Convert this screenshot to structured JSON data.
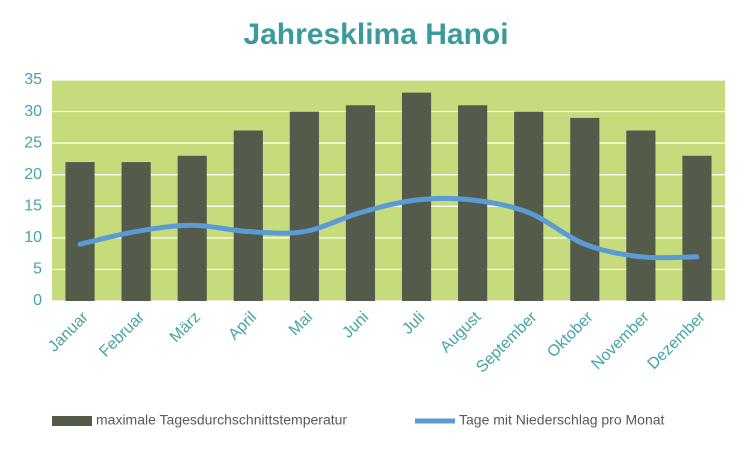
{
  "chart_data": {
    "type": "combo",
    "title": "Jahresklima Hanoi",
    "categories": [
      "Januar",
      "Februar",
      "März",
      "April",
      "Mai",
      "Juni",
      "Juli",
      "August",
      "September",
      "Oktober",
      "November",
      "Dezember"
    ],
    "series": [
      {
        "name": "maximale Tagesdurchschnittstemperatur",
        "type": "bar",
        "color": "#545b4a",
        "values": [
          22,
          22,
          23,
          27,
          30,
          31,
          33,
          31,
          30,
          29,
          27,
          23
        ]
      },
      {
        "name": "Tage mit Niederschlag pro Monat",
        "type": "line",
        "color": "#5b9bd5",
        "values": [
          9,
          11,
          12,
          11,
          11,
          14,
          16,
          16,
          14,
          9,
          7,
          7
        ]
      }
    ],
    "ylim": [
      0,
      35
    ],
    "yticks": [
      0,
      5,
      10,
      15,
      20,
      25,
      30,
      35
    ],
    "grid": true,
    "legend": "bottom"
  }
}
